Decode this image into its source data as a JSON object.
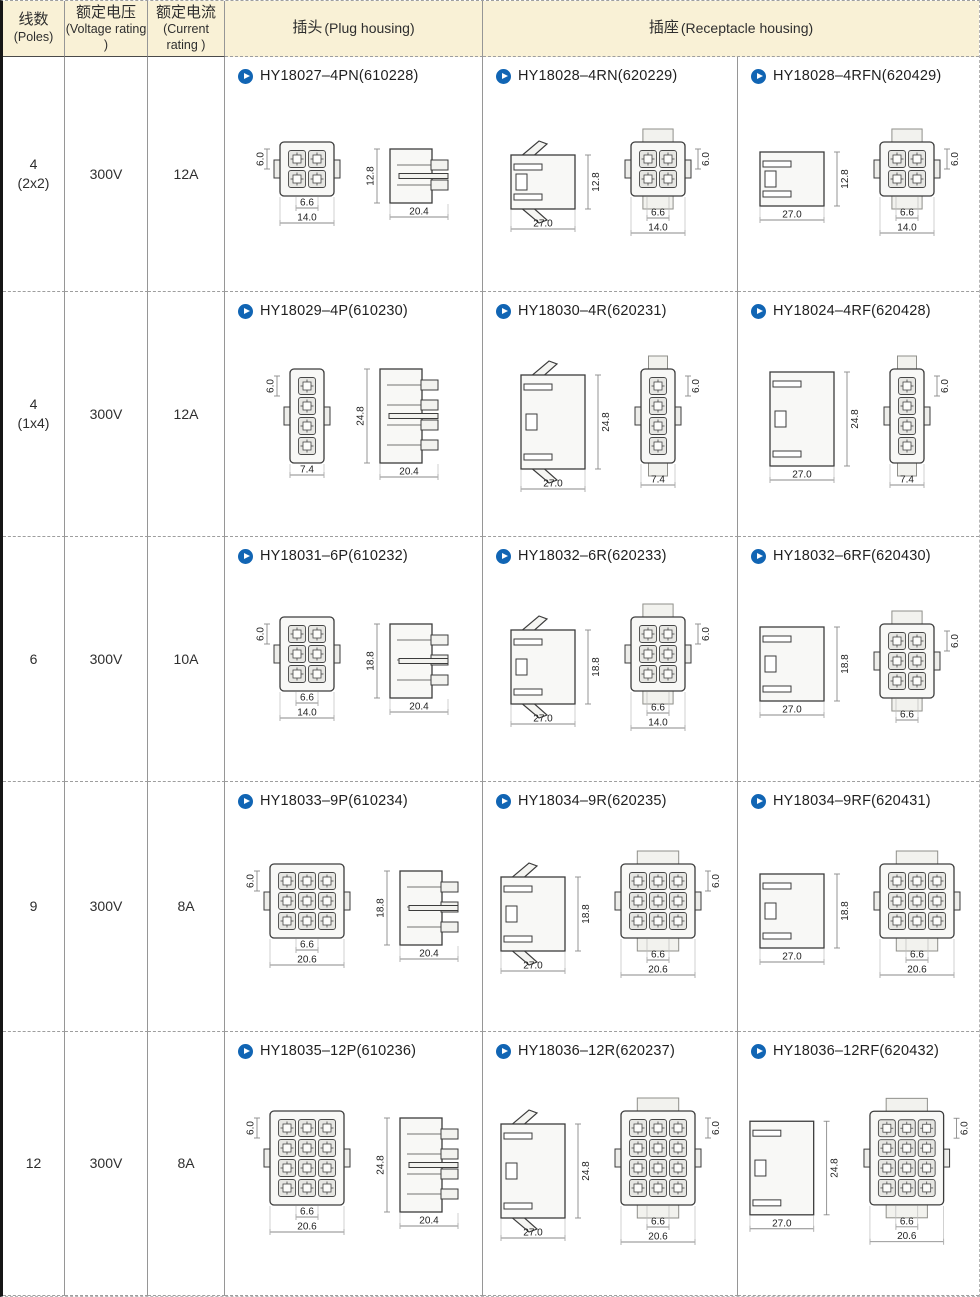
{
  "palette": {
    "header_bg": "#f9f1d6",
    "accent_blue": "#1165b4",
    "line_dark": "#3c3c3c",
    "dim_line": "#8a8a8a"
  },
  "header": {
    "poles": {
      "zh": "线数",
      "en": "(Poles)"
    },
    "voltage": {
      "zh": "额定电压",
      "en": "(Voltage rating )"
    },
    "current": {
      "zh": "额定电流",
      "en": "(Current rating )"
    },
    "plug": {
      "zh": "插头",
      "en": "(Plug housing)"
    },
    "receptacle": {
      "zh": "插座",
      "en": "(Receptacle housing)"
    }
  },
  "icons": {
    "bullet": "play-icon"
  },
  "rows": [
    {
      "poles": "4",
      "poles_sub": "(2x2)",
      "voltage": "300V",
      "current": "12A",
      "cells": [
        {
          "part": "HY18027–4PN(610228)",
          "drawings": [
            {
              "kind": "front",
              "cols": 2,
              "rows": 2,
              "dims": {
                "left": "6.0",
                "bot1": "6.6",
                "bot2": "14.0"
              }
            },
            {
              "kind": "plug_side",
              "prongs": 2,
              "dims": {
                "left": "12.8",
                "bot": "20.4"
              }
            }
          ]
        },
        {
          "part": "HY18028–4RN(620229)",
          "drawings": [
            {
              "kind": "rec_side",
              "rows": 2,
              "winged": true,
              "dims": {
                "bot": "27.0",
                "right": "12.8"
              }
            },
            {
              "kind": "front",
              "cols": 2,
              "rows": 2,
              "band": true,
              "dims": {
                "right": "6.0",
                "bot1": "6.6",
                "bot2": "14.0"
              }
            }
          ]
        },
        {
          "part": "HY18028–4RFN(620429)",
          "drawings": [
            {
              "kind": "rec_side",
              "rows": 2,
              "winged": false,
              "dims": {
                "bot": "27.0",
                "right": "12.8"
              }
            },
            {
              "kind": "front",
              "cols": 2,
              "rows": 2,
              "band": true,
              "dims": {
                "right": "6.0",
                "bot1": "6.6",
                "bot2": "14.0"
              }
            }
          ]
        }
      ]
    },
    {
      "poles": "4",
      "poles_sub": "(1x4)",
      "voltage": "300V",
      "current": "12A",
      "cells": [
        {
          "part": "HY18029–4P(610230)",
          "drawings": [
            {
              "kind": "front",
              "cols": 1,
              "rows": 4,
              "dims": {
                "left": "6.0",
                "bot2": "7.4"
              }
            },
            {
              "kind": "plug_side",
              "prongs": 4,
              "dims": {
                "left": "24.8",
                "bot": "20.4"
              }
            }
          ]
        },
        {
          "part": "HY18030–4R(620231)",
          "drawings": [
            {
              "kind": "rec_side",
              "rows": 4,
              "winged": true,
              "dims": {
                "bot": "27.0",
                "right": "24.8"
              }
            },
            {
              "kind": "front",
              "cols": 1,
              "rows": 4,
              "band": true,
              "dims": {
                "right": "6.0",
                "bot2": "7.4"
              }
            }
          ]
        },
        {
          "part": "HY18024–4RF(620428)",
          "drawings": [
            {
              "kind": "rec_side",
              "rows": 4,
              "winged": false,
              "dims": {
                "bot": "27.0",
                "right": "24.8"
              }
            },
            {
              "kind": "front",
              "cols": 1,
              "rows": 4,
              "band": true,
              "dims": {
                "right": "6.0",
                "bot2": "7.4"
              }
            }
          ]
        }
      ]
    },
    {
      "poles": "6",
      "voltage": "300V",
      "current": "10A",
      "cells": [
        {
          "part": "HY18031–6P(610232)",
          "drawings": [
            {
              "kind": "front",
              "cols": 2,
              "rows": 3,
              "dims": {
                "left": "6.0",
                "bot1": "6.6",
                "bot2": "14.0"
              }
            },
            {
              "kind": "plug_side",
              "prongs": 3,
              "dims": {
                "left": "18.8",
                "bot": "20.4"
              }
            }
          ]
        },
        {
          "part": "HY18032–6R(620233)",
          "drawings": [
            {
              "kind": "rec_side",
              "rows": 3,
              "winged": true,
              "dims": {
                "bot": "27.0",
                "right": "18.8"
              }
            },
            {
              "kind": "front",
              "cols": 2,
              "rows": 3,
              "band": true,
              "dims": {
                "right": "6.0",
                "bot1": "6.6",
                "bot2": "14.0"
              }
            }
          ]
        },
        {
          "part": "HY18032–6RF(620430)",
          "drawings": [
            {
              "kind": "rec_side",
              "rows": 3,
              "winged": false,
              "dims": {
                "bot": "27.0",
                "right": "18.8"
              }
            },
            {
              "kind": "front",
              "cols": 2,
              "rows": 3,
              "band": true,
              "dims": {
                "right": "6.0",
                "bot1": "6.6"
              }
            }
          ]
        }
      ]
    },
    {
      "poles": "9",
      "voltage": "300V",
      "current": "8A",
      "cells": [
        {
          "part": "HY18033–9P(610234)",
          "drawings": [
            {
              "kind": "front",
              "cols": 3,
              "rows": 3,
              "dims": {
                "left": "6.0",
                "bot1": "6.6",
                "bot2": "20.6"
              }
            },
            {
              "kind": "plug_side",
              "prongs": 3,
              "dims": {
                "left": "18.8",
                "bot": "20.4"
              }
            }
          ]
        },
        {
          "part": "HY18034–9R(620235)",
          "drawings": [
            {
              "kind": "rec_side",
              "rows": 3,
              "winged": true,
              "dims": {
                "bot": "27.0",
                "right": "18.8"
              }
            },
            {
              "kind": "front",
              "cols": 3,
              "rows": 3,
              "band": true,
              "dims": {
                "right": "6.0",
                "bot1": "6.6",
                "bot2": "20.6"
              }
            }
          ]
        },
        {
          "part": "HY18034–9RF(620431)",
          "drawings": [
            {
              "kind": "rec_side",
              "rows": 3,
              "winged": false,
              "dims": {
                "bot": "27.0",
                "right": "18.8"
              }
            },
            {
              "kind": "front",
              "cols": 3,
              "rows": 3,
              "band": true,
              "dims": {
                "bot1": "6.6",
                "bot2": "20.6"
              }
            }
          ]
        }
      ]
    },
    {
      "poles": "12",
      "voltage": "300V",
      "current": "8A",
      "cells": [
        {
          "part": "HY18035–12P(610236)",
          "drawings": [
            {
              "kind": "front",
              "cols": 3,
              "rows": 4,
              "dims": {
                "left": "6.0",
                "bot1": "6.6",
                "bot2": "20.6"
              }
            },
            {
              "kind": "plug_side",
              "prongs": 4,
              "dims": {
                "left": "24.8",
                "bot": "20.4"
              }
            }
          ]
        },
        {
          "part": "HY18036–12R(620237)",
          "drawings": [
            {
              "kind": "rec_side",
              "rows": 4,
              "winged": true,
              "dims": {
                "bot": "27.0",
                "right": "24.8"
              }
            },
            {
              "kind": "front",
              "cols": 3,
              "rows": 4,
              "band": true,
              "dims": {
                "right": "6.0",
                "bot1": "6.6",
                "bot2": "20.6"
              }
            }
          ]
        },
        {
          "part": "HY18036–12RF(620432)",
          "drawings": [
            {
              "kind": "rec_side",
              "rows": 4,
              "winged": false,
              "dims": {
                "bot": "27.0",
                "right": "24.8"
              }
            },
            {
              "kind": "front",
              "cols": 3,
              "rows": 4,
              "band": true,
              "dims": {
                "right": "6.0",
                "bot1": "6.6",
                "bot2": "20.6"
              }
            }
          ]
        }
      ]
    }
  ]
}
